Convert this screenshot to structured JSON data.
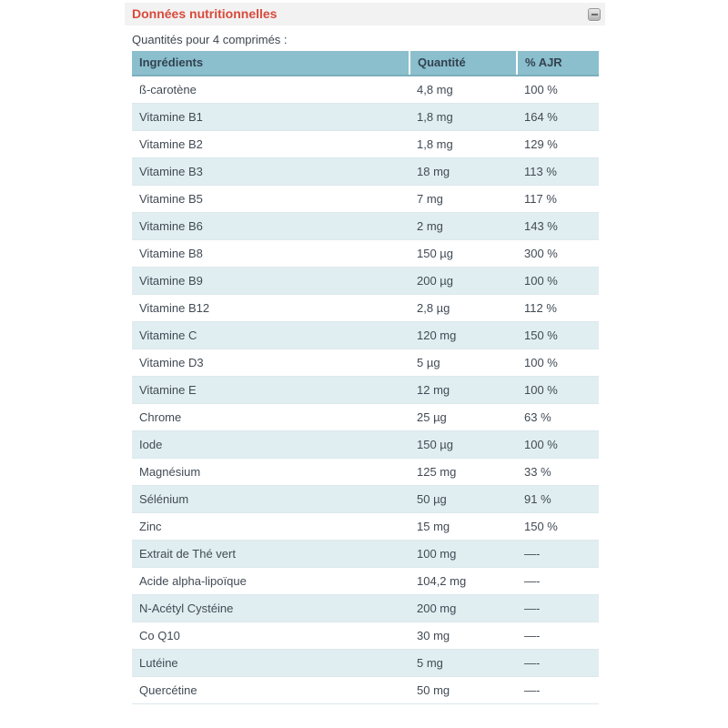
{
  "panel": {
    "title": "Données nutritionnelles",
    "subtitle": "Quantités pour 4 comprimés :",
    "collapse_icon": "minus-icon"
  },
  "table": {
    "headers": [
      "Ingrédients",
      "Quantité",
      "% AJR"
    ],
    "rows": [
      {
        "name": "ß-carotène",
        "quantity": "4,8 mg",
        "ajr": "100 %"
      },
      {
        "name": "Vitamine B1",
        "quantity": "1,8 mg",
        "ajr": "164 %"
      },
      {
        "name": "Vitamine B2",
        "quantity": "1,8 mg",
        "ajr": "129 %"
      },
      {
        "name": "Vitamine B3",
        "quantity": "18 mg",
        "ajr": "113 %"
      },
      {
        "name": "Vitamine B5",
        "quantity": "7 mg",
        "ajr": "117 %"
      },
      {
        "name": "Vitamine B6",
        "quantity": "2 mg",
        "ajr": "143 %"
      },
      {
        "name": "Vitamine B8",
        "quantity": "150 µg",
        "ajr": "300 %"
      },
      {
        "name": "Vitamine B9",
        "quantity": "200 µg",
        "ajr": "100 %"
      },
      {
        "name": "Vitamine B12",
        "quantity": "2,8 µg",
        "ajr": "112 %"
      },
      {
        "name": "Vitamine C",
        "quantity": "120 mg",
        "ajr": "150 %"
      },
      {
        "name": "Vitamine D3",
        "quantity": "5 µg",
        "ajr": "100 %"
      },
      {
        "name": "Vitamine E",
        "quantity": "12 mg",
        "ajr": "100 %"
      },
      {
        "name": "Chrome",
        "quantity": "25 µg",
        "ajr": "63 %"
      },
      {
        "name": "Iode",
        "quantity": "150 µg",
        "ajr": "100 %"
      },
      {
        "name": "Magnésium",
        "quantity": "125 mg",
        "ajr": "33 %"
      },
      {
        "name": "Sélénium",
        "quantity": "50 µg",
        "ajr": "91 %"
      },
      {
        "name": "Zinc",
        "quantity": "15 mg",
        "ajr": "150 %"
      },
      {
        "name": "Extrait de Thé vert",
        "quantity": "100 mg",
        "ajr": "—-"
      },
      {
        "name": "Acide alpha-lipoïque",
        "quantity": "104,2 mg",
        "ajr": "—-"
      },
      {
        "name": "N-Acétyl Cystéine",
        "quantity": "200 mg",
        "ajr": "—-"
      },
      {
        "name": "Co Q10",
        "quantity": "30 mg",
        "ajr": "—-"
      },
      {
        "name": "Lutéine",
        "quantity": "5 mg",
        "ajr": "—-"
      },
      {
        "name": "Quercétine",
        "quantity": "50 mg",
        "ajr": "—-"
      }
    ]
  },
  "colors": {
    "accent_red": "#d94a3c",
    "panel_header_bg": "#f2f2f2",
    "table_header_bg": "#8bbfcd",
    "table_header_border": "#79aebc",
    "row_alt_bg": "#e1eef1",
    "row_border": "#dce8ec",
    "text": "#414a55"
  }
}
